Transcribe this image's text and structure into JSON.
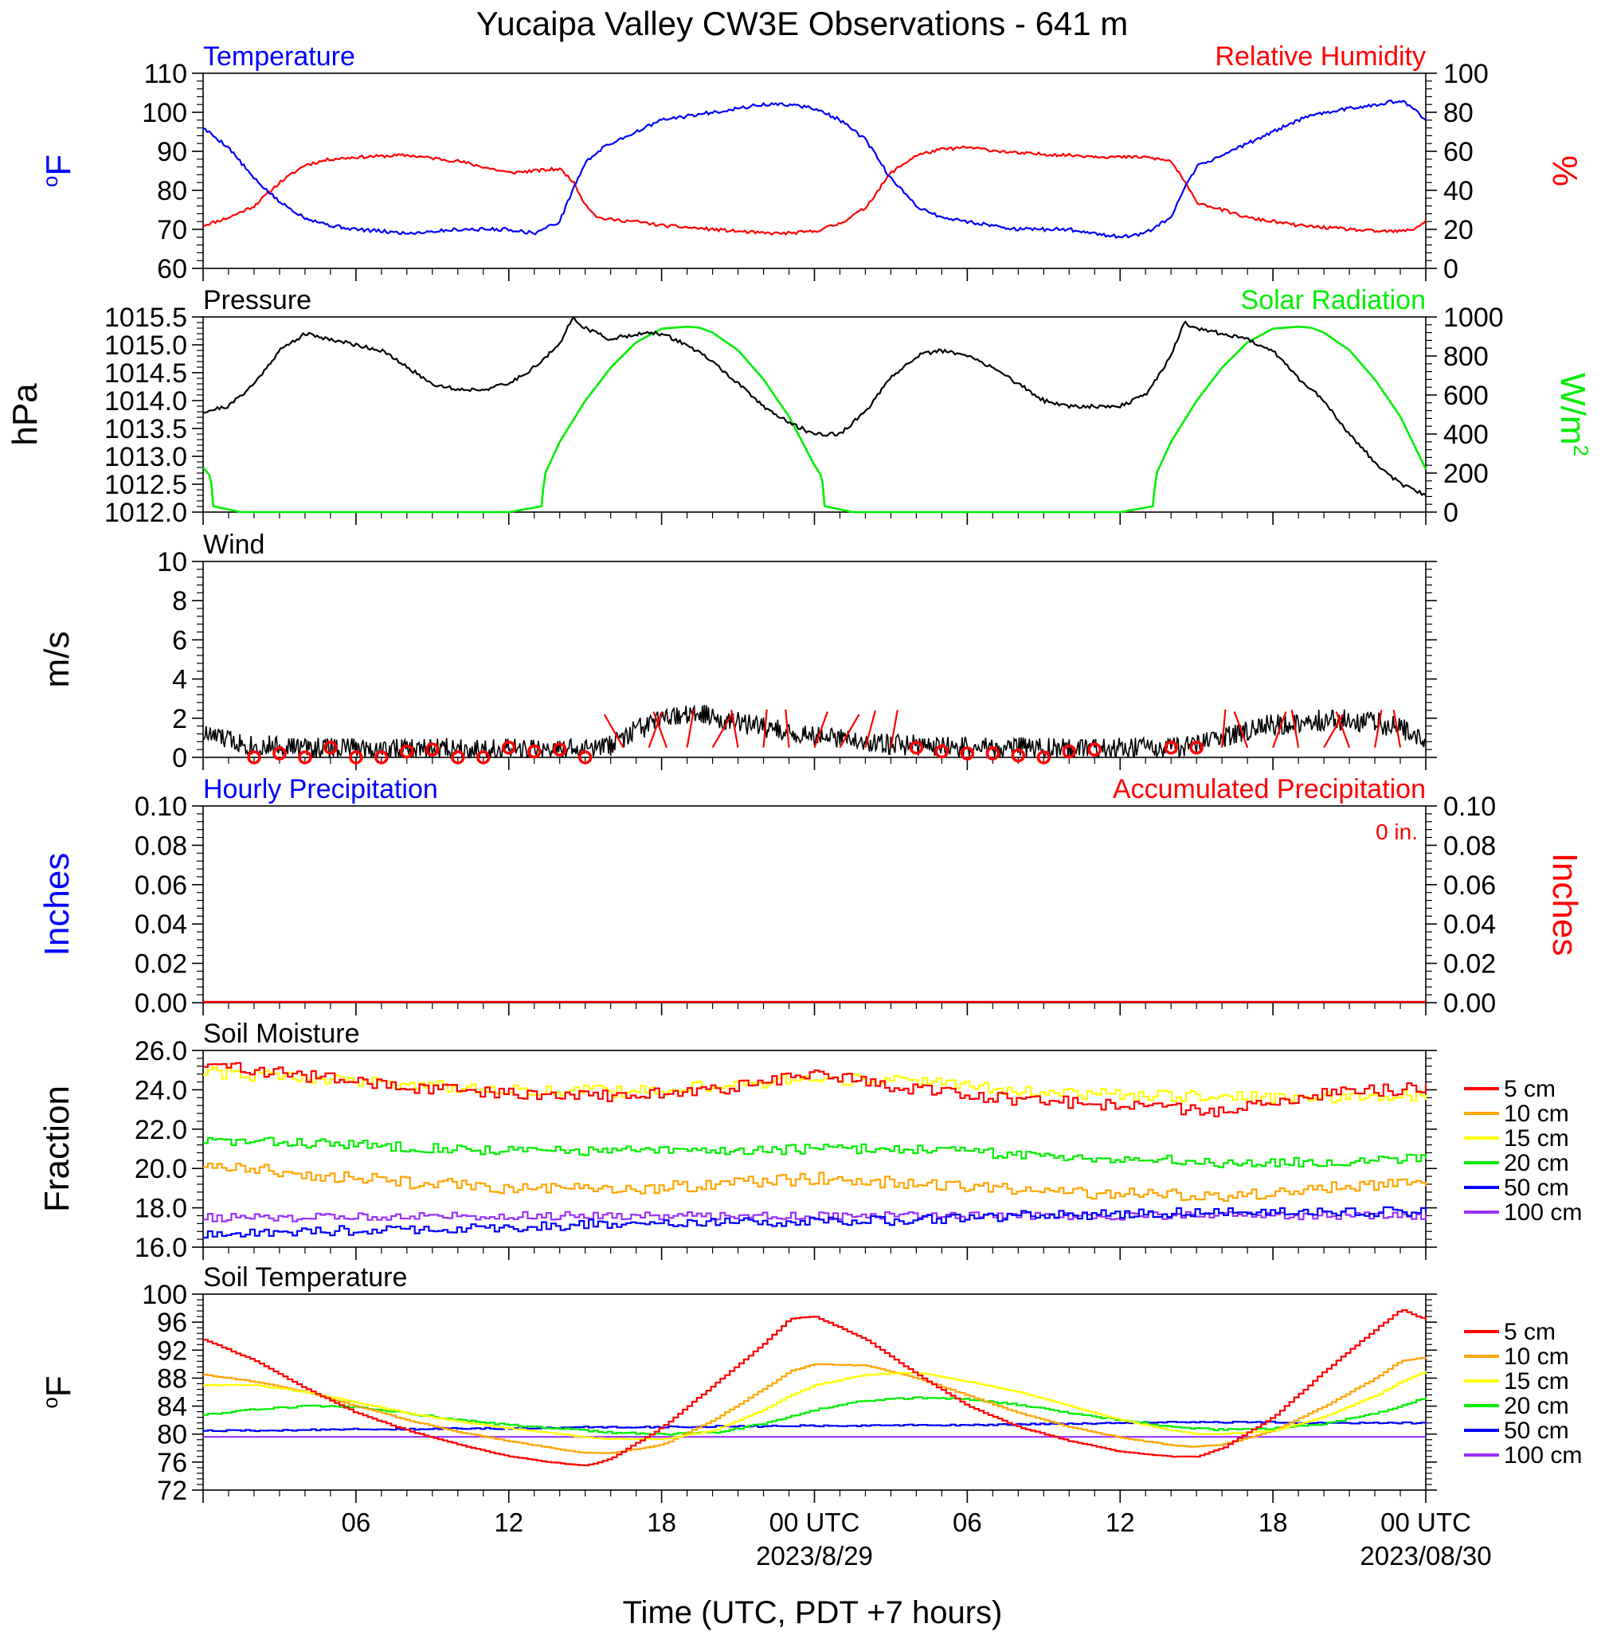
{
  "figure": {
    "title": "Yucaipa Valley CW3E Observations - 641 m",
    "xlabel": "Time (UTC, PDT +7 hours)",
    "x_ticks": [
      {
        "label": "06",
        "date": ""
      },
      {
        "label": "12",
        "date": ""
      },
      {
        "label": "18",
        "date": ""
      },
      {
        "label": "00 UTC",
        "date": "2023/8/29"
      },
      {
        "label": "06",
        "date": ""
      },
      {
        "label": "12",
        "date": ""
      },
      {
        "label": "18",
        "date": ""
      },
      {
        "label": "00 UTC",
        "date": "2023/08/30"
      }
    ]
  },
  "colors": {
    "temperature": "#0000ff",
    "humidity": "#ff0000",
    "pressure": "#000000",
    "solar": "#00ee00",
    "wind": "#000000",
    "wind_barb": "#ff0000",
    "depth_5": "#ff0000",
    "depth_10": "#ffa500",
    "depth_15": "#ffff00",
    "depth_20": "#00ee00",
    "depth_50": "#0000ff",
    "depth_100": "#9b30ff"
  },
  "chart_data": [
    {
      "type": "line",
      "panel": "temperature-humidity",
      "left_title": "Temperature",
      "right_title": "Relative Humidity",
      "ylabel_left": "oF",
      "ylabel_right": "%",
      "ylim_left": [
        60,
        110
      ],
      "ylim_right": [
        0,
        100
      ],
      "yticks_left": [
        "60",
        "70",
        "80",
        "90",
        "100",
        "110"
      ],
      "yticks_right": [
        "0",
        "20",
        "40",
        "60",
        "80",
        "100"
      ],
      "x_hours": [
        0,
        1,
        2,
        3,
        4,
        5,
        6,
        8,
        10,
        12,
        13,
        14,
        14.5,
        15,
        15.5,
        16,
        17,
        18,
        19,
        20,
        21,
        22,
        23,
        24,
        25,
        26,
        26.5,
        27,
        28,
        29,
        30,
        32,
        34,
        36,
        37,
        38,
        38.5,
        39,
        40,
        41,
        42,
        43,
        44,
        45,
        46,
        47,
        47.5,
        48
      ],
      "series": [
        {
          "name": "Temperature",
          "color_key": "temperature",
          "axis": "left",
          "values": [
            96,
            91,
            83,
            77,
            73,
            71,
            70,
            69,
            70,
            70,
            69,
            72,
            80,
            87,
            90,
            92,
            95,
            98,
            99,
            100,
            101,
            102,
            102,
            101,
            98,
            93,
            88,
            83,
            76,
            73,
            72,
            70,
            70,
            68,
            69,
            73,
            80,
            86,
            89,
            92,
            95,
            98,
            100,
            101,
            102,
            103,
            101,
            98
          ]
        },
        {
          "name": "Relative Humidity",
          "color_key": "humidity",
          "axis": "right",
          "values": [
            22,
            26,
            32,
            44,
            53,
            56,
            57,
            58,
            55,
            49,
            50,
            51,
            45,
            33,
            26,
            25,
            24,
            22,
            21,
            20,
            19,
            18,
            18,
            19,
            23,
            31,
            40,
            49,
            58,
            61,
            62,
            59,
            58,
            57,
            57,
            55,
            45,
            34,
            30,
            26,
            24,
            22,
            21,
            20,
            19,
            19,
            20,
            24
          ]
        }
      ]
    },
    {
      "type": "line",
      "panel": "pressure-solar",
      "left_title": "Pressure",
      "right_title": "Solar Radiation",
      "ylabel_left": "hPa",
      "ylabel_right": "W/m2",
      "ylim_left": [
        1012.0,
        1015.5
      ],
      "ylim_right": [
        0,
        1000
      ],
      "yticks_left": [
        "1012.0",
        "1012.5",
        "1013.0",
        "1013.5",
        "1014.0",
        "1014.5",
        "1015.0",
        "1015.5"
      ],
      "yticks_right": [
        "0",
        "200",
        "400",
        "600",
        "800",
        "1000"
      ],
      "series": [
        {
          "name": "Pressure",
          "color_key": "pressure",
          "axis": "left",
          "x_hours": [
            0,
            1,
            2,
            3,
            4,
            5,
            6,
            7,
            8,
            9,
            10,
            11,
            12,
            13,
            14,
            14.5,
            15,
            16,
            17,
            18,
            19,
            20,
            21,
            22,
            23,
            24,
            25,
            26,
            27,
            28,
            29,
            30,
            31,
            32,
            33,
            34,
            35,
            36,
            37,
            38,
            38.5,
            39,
            40,
            41,
            42,
            43,
            44,
            45,
            46,
            47,
            48
          ],
          "values": [
            1013.8,
            1013.9,
            1014.3,
            1014.9,
            1015.2,
            1015.1,
            1015.0,
            1014.9,
            1014.6,
            1014.3,
            1014.2,
            1014.2,
            1014.3,
            1014.6,
            1015.0,
            1015.5,
            1015.3,
            1015.1,
            1015.2,
            1015.2,
            1015.0,
            1014.7,
            1014.3,
            1013.9,
            1013.6,
            1013.4,
            1013.4,
            1013.8,
            1014.4,
            1014.8,
            1014.9,
            1014.8,
            1014.6,
            1014.3,
            1014.0,
            1013.9,
            1013.9,
            1013.9,
            1014.1,
            1014.8,
            1015.4,
            1015.3,
            1015.2,
            1015.1,
            1014.9,
            1014.4,
            1014.0,
            1013.4,
            1012.9,
            1012.5,
            1012.3
          ]
        },
        {
          "name": "Solar Radiation",
          "color_key": "solar",
          "axis": "right",
          "x_hours": [
            0,
            0.3,
            0.4,
            1.5,
            12,
            13.3,
            13.4,
            14,
            15,
            16,
            17,
            18,
            19,
            19.5,
            20,
            21,
            22,
            23,
            24,
            24.3,
            24.4,
            25.5,
            36,
            37.3,
            37.4,
            38,
            39,
            40,
            41,
            42,
            43,
            43.5,
            44,
            45,
            46,
            47,
            48
          ],
          "values": [
            230,
            180,
            30,
            0,
            0,
            30,
            190,
            360,
            570,
            740,
            870,
            940,
            950,
            945,
            920,
            830,
            680,
            490,
            240,
            180,
            30,
            0,
            0,
            30,
            190,
            360,
            570,
            740,
            870,
            940,
            950,
            945,
            920,
            830,
            680,
            490,
            220
          ]
        }
      ]
    },
    {
      "type": "line",
      "panel": "wind",
      "left_title": "Wind",
      "ylabel_left": "m/s",
      "ylim_left": [
        0,
        10
      ],
      "yticks_left": [
        "0",
        "2",
        "4",
        "6",
        "8",
        "10"
      ],
      "x_hours": [
        0,
        1,
        2,
        4,
        6,
        8,
        10,
        12,
        14,
        15,
        16,
        17,
        18,
        19,
        20,
        21,
        22,
        23,
        24,
        25,
        26,
        27,
        28,
        30,
        32,
        34,
        36,
        37,
        38,
        39,
        40,
        41,
        42,
        43,
        44,
        45,
        46,
        47,
        48
      ],
      "series": [
        {
          "name": "Wind speed",
          "color_key": "wind",
          "axis": "left",
          "values": [
            1.2,
            0.9,
            0.6,
            0.5,
            0.5,
            0.4,
            0.5,
            0.4,
            0.4,
            0.4,
            0.6,
            1.4,
            1.9,
            2.2,
            2.1,
            1.8,
            1.5,
            1.3,
            1.1,
            0.9,
            0.8,
            0.7,
            0.6,
            0.5,
            0.5,
            0.4,
            0.5,
            0.5,
            0.5,
            0.6,
            1.0,
            1.4,
            1.7,
            1.8,
            1.9,
            1.9,
            1.8,
            1.5,
            1.0
          ]
        }
      ],
      "calm_hours": [
        2,
        3,
        4,
        5,
        6,
        7,
        8,
        9,
        10,
        11,
        12,
        13,
        14,
        15,
        28,
        29,
        30,
        31,
        32,
        33,
        34,
        35,
        38,
        39
      ],
      "calm_values": [
        0,
        0.2,
        0,
        0.5,
        0,
        0,
        0.3,
        0.4,
        0,
        0,
        0.5,
        0.3,
        0.4,
        0,
        0.5,
        0.3,
        0.2,
        0.2,
        0.1,
        0,
        0.3,
        0.4,
        0.5,
        0.5
      ],
      "barbs": [
        {
          "hour": 16.5,
          "dir": 30
        },
        {
          "hour": 17.5,
          "dir": 340
        },
        {
          "hour": 18.2,
          "dir": 20
        },
        {
          "hour": 19,
          "dir": 350
        },
        {
          "hour": 20,
          "dir": 330
        },
        {
          "hour": 21,
          "dir": 10
        },
        {
          "hour": 22,
          "dir": 355
        },
        {
          "hour": 23,
          "dir": 5
        },
        {
          "hour": 24,
          "dir": 340
        },
        {
          "hour": 25,
          "dir": 330
        },
        {
          "hour": 26,
          "dir": 345
        },
        {
          "hour": 27,
          "dir": 350
        },
        {
          "hour": 40,
          "dir": 355
        },
        {
          "hour": 41,
          "dir": 20
        },
        {
          "hour": 42,
          "dir": 340
        },
        {
          "hour": 43,
          "dir": 10
        },
        {
          "hour": 44,
          "dir": 330
        },
        {
          "hour": 45,
          "dir": 20
        },
        {
          "hour": 46,
          "dir": 350
        },
        {
          "hour": 47,
          "dir": 10
        }
      ]
    },
    {
      "type": "line",
      "panel": "precipitation",
      "left_title": "Hourly Precipitation",
      "right_title": "Accumulated Precipitation",
      "annotation": "0 in.",
      "ylabel_left": "Inches",
      "ylabel_right": "Inches",
      "ylim_left": [
        0,
        0.1
      ],
      "ylim_right": [
        0,
        0.1
      ],
      "yticks_left": [
        "0.00",
        "0.02",
        "0.04",
        "0.06",
        "0.08",
        "0.10"
      ],
      "yticks_right": [
        "0.00",
        "0.02",
        "0.04",
        "0.06",
        "0.08",
        "0.10"
      ],
      "x_hours": [
        0,
        48
      ],
      "series": [
        {
          "name": "Hourly Precipitation",
          "color_key": "temperature",
          "axis": "left",
          "values": [
            0,
            0
          ]
        },
        {
          "name": "Accumulated Precipitation",
          "color_key": "humidity",
          "axis": "right",
          "values": [
            0,
            0
          ]
        }
      ]
    },
    {
      "type": "line",
      "panel": "soil-moisture",
      "left_title": "Soil Moisture",
      "ylabel_left": "Fraction",
      "ylim_left": [
        16,
        26
      ],
      "yticks_left": [
        "16.0",
        "18.0",
        "20.0",
        "22.0",
        "24.0",
        "26.0"
      ],
      "x_hours": [
        0,
        4,
        8,
        12,
        16,
        20,
        24,
        28,
        32,
        36,
        40,
        44,
        48
      ],
      "series": [
        {
          "name": "5 cm",
          "color_key": "depth_5",
          "values": [
            25.3,
            24.7,
            24.1,
            23.8,
            23.7,
            24.0,
            24.8,
            24.0,
            23.5,
            23.2,
            22.9,
            23.8,
            24.1
          ]
        },
        {
          "name": "10 cm",
          "color_key": "depth_10",
          "values": [
            20.2,
            19.7,
            19.3,
            19.0,
            18.9,
            19.2,
            19.5,
            19.2,
            18.9,
            18.7,
            18.6,
            19.0,
            19.4
          ]
        },
        {
          "name": "15 cm",
          "color_key": "depth_15",
          "values": [
            24.9,
            24.6,
            24.3,
            24.0,
            23.9,
            24.2,
            24.6,
            24.4,
            24.0,
            23.7,
            23.6,
            23.6,
            23.7
          ]
        },
        {
          "name": "20 cm",
          "color_key": "depth_20",
          "values": [
            21.4,
            21.3,
            21.1,
            20.9,
            20.9,
            20.9,
            21.0,
            21.0,
            20.7,
            20.5,
            20.3,
            20.3,
            20.6
          ]
        },
        {
          "name": "50 cm",
          "color_key": "depth_50",
          "values": [
            16.6,
            16.8,
            16.9,
            17.0,
            17.2,
            17.3,
            17.3,
            17.4,
            17.6,
            17.7,
            17.8,
            17.8,
            17.8
          ]
        },
        {
          "name": "100 cm",
          "color_key": "depth_100",
          "values": [
            17.5,
            17.5,
            17.6,
            17.6,
            17.6,
            17.6,
            17.6,
            17.6,
            17.6,
            17.6,
            17.6,
            17.6,
            17.6
          ]
        }
      ]
    },
    {
      "type": "line",
      "panel": "soil-temperature",
      "left_title": "Soil Temperature",
      "ylabel_left": "oF",
      "ylim_left": [
        72,
        100
      ],
      "yticks_left": [
        "72",
        "76",
        "80",
        "84",
        "88",
        "92",
        "96",
        "100"
      ],
      "x_hours": [
        0,
        2,
        4,
        6,
        8,
        10,
        12,
        14,
        15,
        16,
        18,
        20,
        22,
        23,
        24,
        26,
        28,
        30,
        32,
        34,
        36,
        38,
        39,
        40,
        42,
        44,
        46,
        47,
        48
      ],
      "series": [
        {
          "name": "5 cm",
          "color_key": "depth_5",
          "values": [
            93.5,
            90.5,
            86.5,
            83.0,
            80.5,
            78.5,
            76.8,
            75.8,
            75.5,
            76.5,
            81.0,
            87.0,
            93.0,
            96.5,
            96.8,
            93.5,
            88.5,
            84.0,
            81.0,
            79.0,
            77.5,
            76.8,
            76.8,
            78.0,
            82.5,
            89.0,
            95.0,
            97.8,
            96.3
          ]
        },
        {
          "name": "10 cm",
          "color_key": "depth_10",
          "values": [
            88.5,
            87.5,
            86.0,
            84.0,
            82.0,
            80.3,
            79.0,
            77.8,
            77.3,
            77.3,
            78.5,
            82.0,
            86.5,
            89.0,
            90.0,
            89.8,
            88.0,
            85.5,
            83.0,
            81.0,
            79.5,
            78.4,
            78.2,
            78.5,
            80.5,
            84.0,
            88.0,
            90.5,
            91.0
          ]
        },
        {
          "name": "15 cm",
          "color_key": "depth_15",
          "values": [
            87.0,
            87.0,
            86.0,
            84.5,
            83.0,
            81.8,
            80.8,
            80.0,
            79.5,
            79.3,
            79.3,
            80.5,
            83.5,
            85.5,
            87.0,
            88.5,
            88.8,
            87.5,
            86.0,
            84.0,
            82.0,
            80.5,
            80.0,
            80.0,
            80.5,
            82.5,
            85.5,
            87.5,
            89.0
          ]
        },
        {
          "name": "20 cm",
          "color_key": "depth_20",
          "values": [
            82.8,
            83.5,
            84.0,
            83.8,
            83.0,
            82.0,
            81.3,
            80.8,
            80.5,
            80.2,
            80.0,
            80.2,
            81.5,
            82.5,
            83.5,
            84.8,
            85.2,
            85.0,
            84.2,
            83.0,
            82.0,
            81.0,
            80.8,
            80.6,
            80.8,
            81.5,
            83.0,
            84.0,
            85.2
          ]
        },
        {
          "name": "50 cm",
          "color_key": "depth_50",
          "values": [
            80.5,
            80.5,
            80.6,
            80.7,
            80.7,
            80.8,
            80.8,
            80.9,
            81.0,
            81.0,
            81.0,
            81.1,
            81.1,
            81.2,
            81.2,
            81.2,
            81.3,
            81.3,
            81.4,
            81.5,
            81.6,
            81.7,
            81.7,
            81.7,
            81.7,
            81.6,
            81.6,
            81.6,
            81.6
          ]
        },
        {
          "name": "100 cm",
          "color_key": "depth_100",
          "values": [
            79.6,
            79.6,
            79.6,
            79.6,
            79.6,
            79.6,
            79.6,
            79.6,
            79.6,
            79.6,
            79.6,
            79.6,
            79.6,
            79.6,
            79.6,
            79.6,
            79.6,
            79.6,
            79.6,
            79.6,
            79.6,
            79.6,
            79.6,
            79.6,
            79.6,
            79.6,
            79.6,
            79.6,
            79.6
          ]
        }
      ]
    }
  ]
}
